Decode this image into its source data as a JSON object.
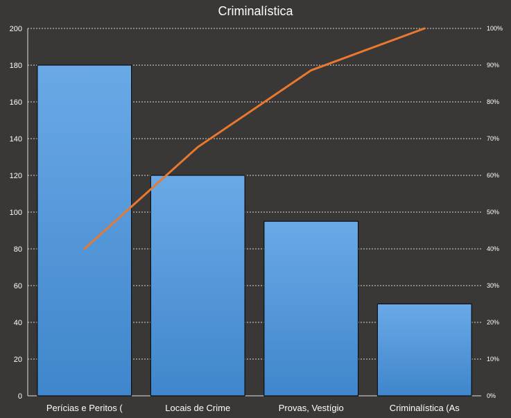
{
  "chart_data": {
    "type": "bar",
    "title": "Criminalística",
    "categories": [
      "Perícias e Peritos (",
      "Locais de Crime",
      "Provas, Vestígio",
      "Criminalística (As"
    ],
    "series": [
      {
        "values": [
          180,
          120,
          95,
          50
        ]
      }
    ],
    "line_series": {
      "axis": "right",
      "values": [
        40.0,
        67.7,
        88.6,
        100.0
      ]
    },
    "ylim": [
      0,
      200
    ],
    "y_ticks": [
      0,
      20,
      40,
      60,
      80,
      100,
      120,
      140,
      160,
      180,
      200
    ],
    "y2lim": [
      0,
      100
    ],
    "y2_ticks": [
      "0%",
      "10%",
      "20%",
      "30%",
      "40%",
      "50%",
      "60%",
      "70%",
      "80%",
      "90%",
      "100%"
    ],
    "grid": true,
    "legend": "none",
    "colors": {
      "background": "#3a3836",
      "bar_top": "#6aa9e6",
      "bar_bottom": "#3f86cc",
      "bar_stroke": "#000000",
      "line": "#e8792f",
      "text": "#ffffff",
      "grid": "#d8d8d8"
    }
  }
}
